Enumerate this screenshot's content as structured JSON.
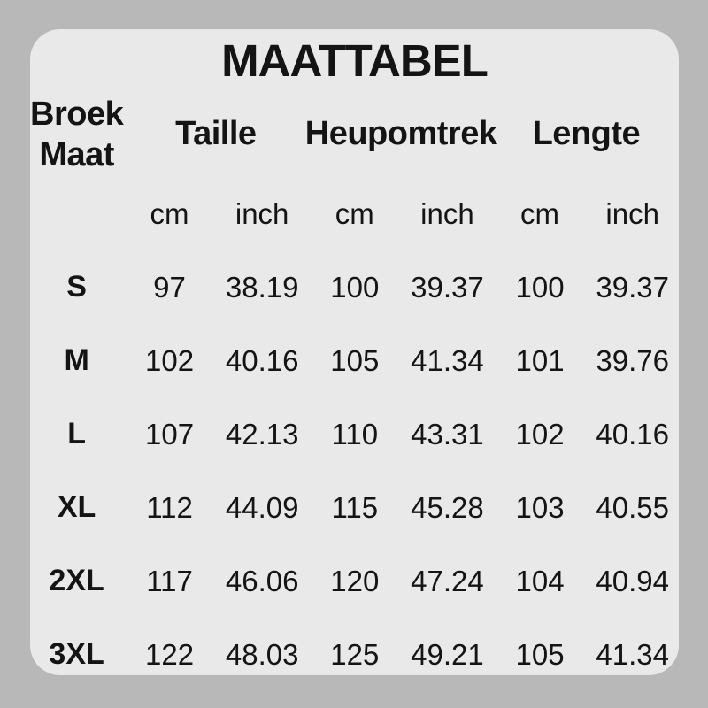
{
  "colors": {
    "page_background": "#b8b8b8",
    "card_background": "#e9e9e9",
    "text": "#141414"
  },
  "chart_data": {
    "type": "table",
    "title": "MAATTABEL",
    "row_header": [
      "Broek",
      "Maat"
    ],
    "column_groups": [
      "Taille",
      "Heupomtrek",
      "Lengte"
    ],
    "unit_cm": "cm",
    "unit_inch": "inch",
    "rows": [
      {
        "size": "S",
        "values": [
          "97",
          "38.19",
          "100",
          "39.37",
          "100",
          "39.37"
        ]
      },
      {
        "size": "M",
        "values": [
          "102",
          "40.16",
          "105",
          "41.34",
          "101",
          "39.76"
        ]
      },
      {
        "size": "L",
        "values": [
          "107",
          "42.13",
          "110",
          "43.31",
          "102",
          "40.16"
        ]
      },
      {
        "size": "XL",
        "values": [
          "112",
          "44.09",
          "115",
          "45.28",
          "103",
          "40.55"
        ]
      },
      {
        "size": "2XL",
        "values": [
          "117",
          "46.06",
          "120",
          "47.24",
          "104",
          "40.94"
        ]
      },
      {
        "size": "3XL",
        "values": [
          "122",
          "48.03",
          "125",
          "49.21",
          "105",
          "41.34"
        ]
      }
    ]
  }
}
